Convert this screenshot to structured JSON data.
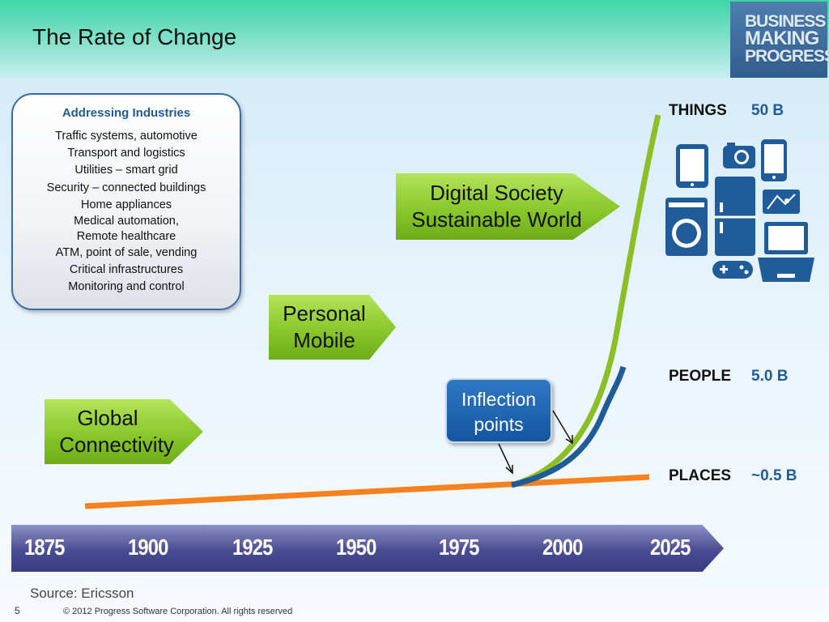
{
  "header": {
    "title": "The Rate of Change"
  },
  "logo": {
    "line1": "BUSINESS",
    "line2": "MAKING",
    "line3": "PROGRESS"
  },
  "industries": {
    "title": "Addressing Industries",
    "items": [
      "Traffic systems, automotive",
      "Transport and logistics",
      "Utilities – smart grid",
      "Security – connected buildings",
      "Home appliances",
      "Medical automation,",
      "Remote healthcare",
      "ATM, point of sale, vending",
      "Critical infrastructures",
      "Monitoring and control"
    ]
  },
  "stages": {
    "global": {
      "line1": "Global",
      "line2": "Connectivity"
    },
    "personal": {
      "line1": "Personal",
      "line2": "Mobile"
    },
    "digital": {
      "line1": "Digital Society",
      "line2": "Sustainable World"
    }
  },
  "inflection": {
    "line1": "Inflection",
    "line2": "points"
  },
  "curves": {
    "things": {
      "label": "THINGS",
      "value": "50 B",
      "color": "#8cbf26"
    },
    "people": {
      "label": "PEOPLE",
      "value": "5.0 B",
      "color": "#1f5c99"
    },
    "places": {
      "label": "PLACES",
      "value": "~0.5 B",
      "color": "#f5821f"
    }
  },
  "timeline": {
    "years": [
      "1875",
      "1900",
      "1925",
      "1950",
      "1975",
      "2000",
      "2025"
    ]
  },
  "footer": {
    "source": "Source: Ericsson",
    "page_number": "5",
    "copyright": "© 2012 Progress Software Corporation. All rights reserved"
  },
  "icons": [
    "tablet-icon",
    "camera-icon",
    "phone-icon",
    "washing-machine-icon",
    "refrigerator-icon",
    "map-icon",
    "game-controller-icon",
    "laptop-icon"
  ]
}
